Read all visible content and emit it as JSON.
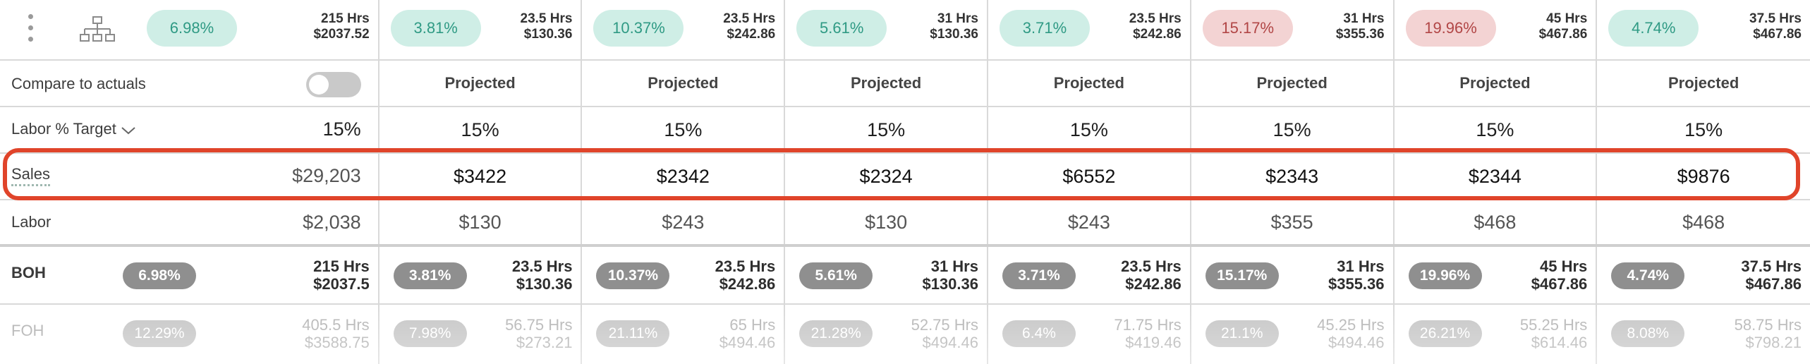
{
  "summary": {
    "first": {
      "pct": "6.98%",
      "status": "good",
      "hrs": "215 Hrs",
      "cost": "$2037.52"
    },
    "days": [
      {
        "pct": "3.81%",
        "status": "good",
        "hrs": "23.5 Hrs",
        "cost": "$130.36"
      },
      {
        "pct": "10.37%",
        "status": "good",
        "hrs": "23.5 Hrs",
        "cost": "$242.86"
      },
      {
        "pct": "5.61%",
        "status": "good",
        "hrs": "31 Hrs",
        "cost": "$130.36"
      },
      {
        "pct": "3.71%",
        "status": "good",
        "hrs": "23.5 Hrs",
        "cost": "$242.86"
      },
      {
        "pct": "15.17%",
        "status": "bad",
        "hrs": "31 Hrs",
        "cost": "$355.36"
      },
      {
        "pct": "19.96%",
        "status": "bad",
        "hrs": "45 Hrs",
        "cost": "$467.86"
      },
      {
        "pct": "4.74%",
        "status": "good",
        "hrs": "37.5 Hrs",
        "cost": "$467.86"
      }
    ]
  },
  "compare": {
    "label": "Compare to actuals",
    "toggle_on": false,
    "projected": [
      "Projected",
      "Projected",
      "Projected",
      "Projected",
      "Projected",
      "Projected",
      "Projected"
    ]
  },
  "labor_target": {
    "label": "Labor % Target",
    "total": "15%",
    "values": [
      "15%",
      "15%",
      "15%",
      "15%",
      "15%",
      "15%",
      "15%"
    ]
  },
  "sales": {
    "label": "Sales",
    "total": "$29,203",
    "values": [
      "$3422",
      "$2342",
      "$2324",
      "$6552",
      "$2343",
      "$2344",
      "$9876"
    ]
  },
  "labor": {
    "label": "Labor",
    "total": "$2,038",
    "values": [
      "$130",
      "$243",
      "$130",
      "$243",
      "$355",
      "$468",
      "$468"
    ]
  },
  "boh": {
    "label": "BOH",
    "first": {
      "pct": "6.98%",
      "hrs": "215 Hrs",
      "cost": "$2037.5"
    },
    "days": [
      {
        "pct": "3.81%",
        "hrs": "23.5 Hrs",
        "cost": "$130.36"
      },
      {
        "pct": "10.37%",
        "hrs": "23.5 Hrs",
        "cost": "$242.86"
      },
      {
        "pct": "5.61%",
        "hrs": "31 Hrs",
        "cost": "$130.36"
      },
      {
        "pct": "3.71%",
        "hrs": "23.5 Hrs",
        "cost": "$242.86"
      },
      {
        "pct": "15.17%",
        "hrs": "31 Hrs",
        "cost": "$355.36"
      },
      {
        "pct": "19.96%",
        "hrs": "45 Hrs",
        "cost": "$467.86"
      },
      {
        "pct": "4.74%",
        "hrs": "37.5 Hrs",
        "cost": "$467.86"
      }
    ]
  },
  "foh": {
    "label": "FOH",
    "first": {
      "pct": "12.29%",
      "hrs": "405.5 Hrs",
      "cost": "$3588.75"
    },
    "days": [
      {
        "pct": "7.98%",
        "hrs": "56.75 Hrs",
        "cost": "$273.21"
      },
      {
        "pct": "21.11%",
        "hrs": "65 Hrs",
        "cost": "$494.46"
      },
      {
        "pct": "21.28%",
        "hrs": "52.75 Hrs",
        "cost": "$494.46"
      },
      {
        "pct": "6.4%",
        "hrs": "71.75 Hrs",
        "cost": "$419.46"
      },
      {
        "pct": "21.1%",
        "hrs": "45.25 Hrs",
        "cost": "$494.46"
      },
      {
        "pct": "26.21%",
        "hrs": "55.25 Hrs",
        "cost": "$614.46"
      },
      {
        "pct": "8.08%",
        "hrs": "58.75 Hrs",
        "cost": "$798.21"
      }
    ]
  },
  "colors": {
    "good_bg": "#cfeee6",
    "good_fg": "#2f9a84",
    "bad_bg": "#f3d3d3",
    "bad_fg": "#b14646",
    "highlight": "#e0442a"
  },
  "icons": {
    "menu": "kebab-menu-icon",
    "org": "org-chart-icon",
    "dropdown": "chevron-down-icon"
  }
}
